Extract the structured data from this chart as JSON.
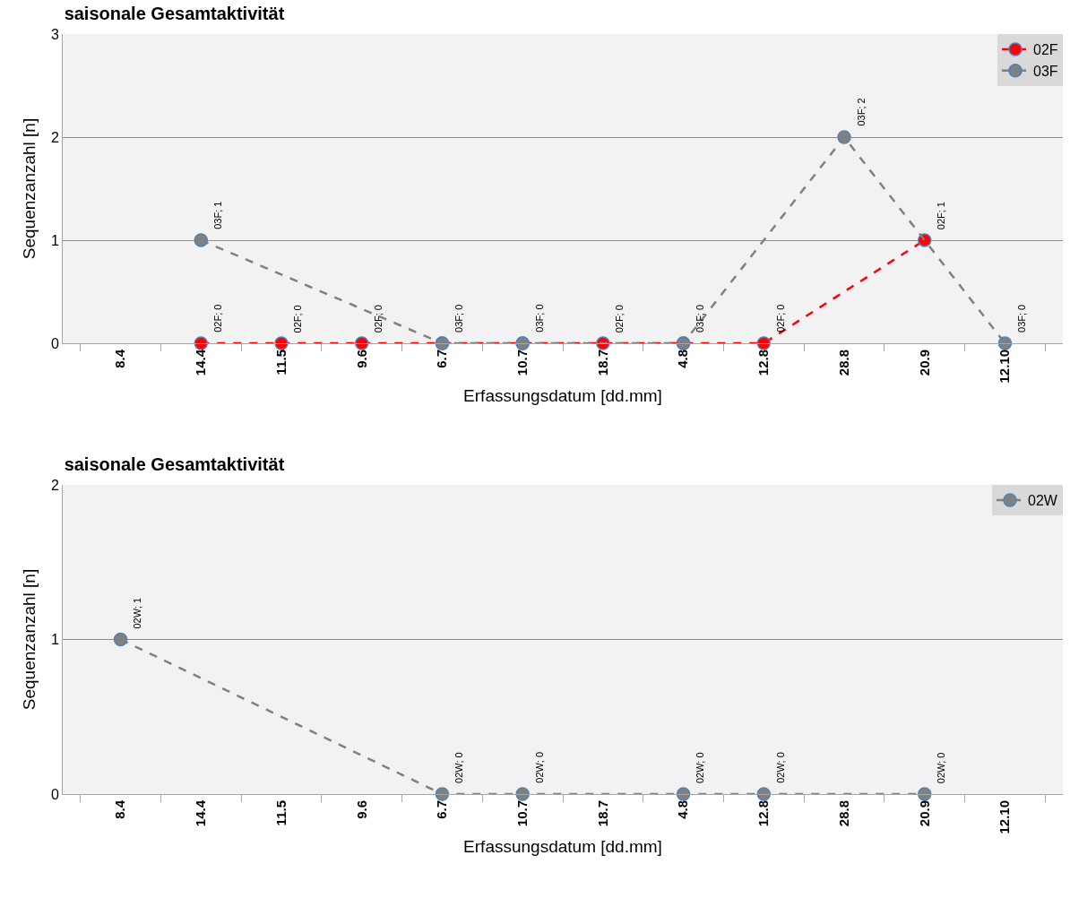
{
  "chart_data": [
    {
      "type": "line",
      "title": "saisonale Gesamtaktivität",
      "xlabel": "Erfassungsdatum [dd.mm]",
      "ylabel": "Sequenzanzahl [n]",
      "categories": [
        "8.4",
        "14.4",
        "11.5",
        "9.6",
        "6.7",
        "10.7",
        "18.7",
        "4.8",
        "12.8",
        "28.8",
        "20.9",
        "12.10"
      ],
      "series": [
        {
          "name": "03F",
          "color": "#808080",
          "values": [
            null,
            1,
            null,
            null,
            0,
            0,
            null,
            0,
            null,
            2,
            null,
            0
          ],
          "value_labels": [
            null,
            "03F; 1",
            null,
            null,
            "03F; 0",
            "03F; 0",
            null,
            "03F; 0",
            null,
            "03F; 2",
            null,
            "03F; 0"
          ]
        },
        {
          "name": "02F",
          "color": "#ff0000",
          "values": [
            null,
            0,
            0,
            0,
            0,
            0,
            0,
            0,
            0,
            null,
            1,
            null
          ],
          "value_labels": [
            null,
            "02F; 0",
            "02F; 0",
            "02F; 0",
            null,
            null,
            "02F; 0",
            null,
            "02F; 0",
            null,
            "02F; 1",
            null
          ]
        }
      ],
      "ylim": [
        0,
        3
      ],
      "yticks": [
        0,
        1,
        2,
        3
      ],
      "grid": "y",
      "legend": "top right",
      "marker": "circle",
      "line_style": "dashed"
    },
    {
      "type": "line",
      "title": "saisonale Gesamtaktivität",
      "xlabel": "Erfassungsdatum [dd.mm]",
      "ylabel": "Sequenzanzahl [n]",
      "categories": [
        "8.4",
        "14.4",
        "11.5",
        "9.6",
        "6.7",
        "10.7",
        "18.7",
        "4.8",
        "12.8",
        "28.8",
        "20.9",
        "12.10"
      ],
      "series": [
        {
          "name": "02W",
          "color": "#808080",
          "values": [
            1,
            null,
            null,
            null,
            0,
            0,
            null,
            0,
            0,
            null,
            0,
            null
          ],
          "value_labels": [
            "02W; 1",
            null,
            null,
            null,
            "02W; 0",
            "02W; 0",
            null,
            "02W; 0",
            "02W; 0",
            null,
            "02W; 0",
            null
          ]
        }
      ],
      "ylim": [
        0,
        2
      ],
      "yticks": [
        0,
        1,
        2
      ],
      "grid": "y",
      "legend": "top right",
      "marker": "circle",
      "line_style": "dashed"
    }
  ]
}
